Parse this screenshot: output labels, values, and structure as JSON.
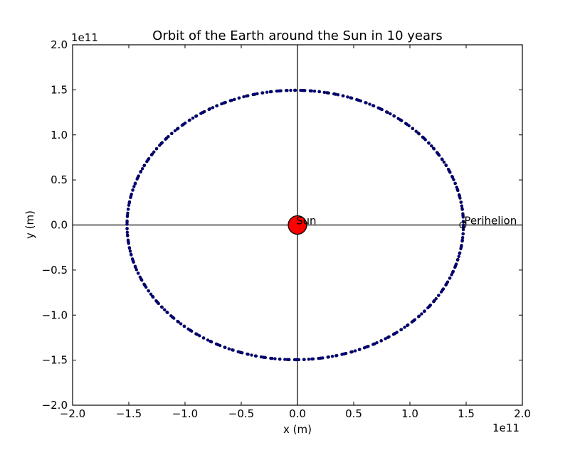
{
  "chart_data": {
    "type": "scatter",
    "title": "Orbit of the Earth around the Sun in 10 years",
    "xlabel": "x (m)",
    "ylabel": "y (m)",
    "xlim": [
      -200000000000.0,
      200000000000.0
    ],
    "ylim": [
      -200000000000.0,
      200000000000.0
    ],
    "x_ticks": [
      -200000000000.0,
      -150000000000.0,
      -100000000000.0,
      -50000000000.0,
      0,
      50000000000.0,
      100000000000.0,
      150000000000.0,
      200000000000.0
    ],
    "y_ticks": [
      -200000000000.0,
      -150000000000.0,
      -100000000000.0,
      -50000000000.0,
      0,
      50000000000.0,
      100000000000.0,
      150000000000.0,
      200000000000.0
    ],
    "x_tick_labels": [
      "−2.0",
      "−1.5",
      "−1.0",
      "−0.5",
      "0.0",
      "0.5",
      "1.0",
      "1.5",
      "2.0"
    ],
    "y_tick_labels": [
      "−2.0",
      "−1.5",
      "−1.0",
      "−0.5",
      "0.0",
      "0.5",
      "1.0",
      "1.5",
      "2.0"
    ],
    "x_offset_label": "1e11",
    "y_offset_label": "1e11",
    "grid": false,
    "orbit": {
      "semi_major_axis_x": 149600000000.0,
      "semi_minor_axis_y": 149500000000.0,
      "center_x": -2000000000.0,
      "perihelion_x": 147100000000.0,
      "aphelion_x": -152100000000.0,
      "marker_color": "#000080",
      "n_points": 480
    },
    "sun": {
      "x": 0,
      "y": 0,
      "label": "Sun",
      "color": "#ff0000"
    },
    "perihelion": {
      "x": 147100000000.0,
      "y": 0,
      "label": "Perihelion"
    }
  }
}
